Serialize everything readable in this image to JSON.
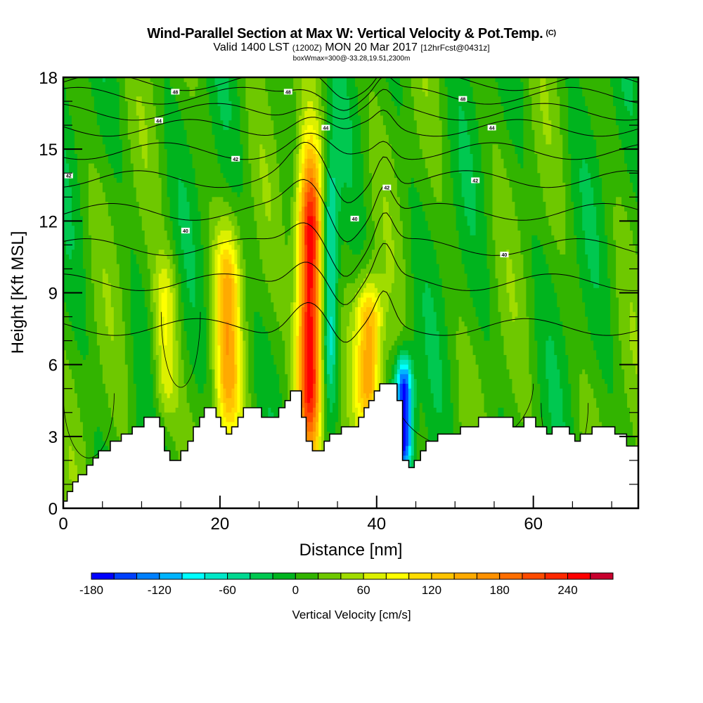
{
  "header": {
    "title": "Wind-Parallel Section at Max W: Vertical Velocity & Pot.Temp.",
    "copyright": "(C)",
    "valid_prefix": "Valid 1400 LST",
    "valid_utc": "(1200Z)",
    "valid_date": "MON 20 Mar 2017",
    "forecast": "[12hrFcst@0431z]",
    "box_info": "boxWmax=300@-33.28,19.51,2300m"
  },
  "chart_data": {
    "type": "heatmap",
    "title": "Wind-Parallel Section at Max W: Vertical Velocity & Pot.Temp.",
    "xlabel": "Distance [nm]",
    "ylabel": "Height [Kft MSL]",
    "xlim": [
      0,
      73.4
    ],
    "ylim": [
      0,
      18
    ],
    "x_ticks": [
      "0",
      "20",
      "40",
      "60"
    ],
    "x_tick_values": [
      0,
      20,
      40,
      60
    ],
    "y_ticks": [
      "0",
      "3",
      "6",
      "9",
      "12",
      "15",
      "18"
    ],
    "y_tick_values": [
      0,
      3,
      6,
      9,
      12,
      15,
      18
    ],
    "colorbar": {
      "label": "Vertical Velocity [cm/s]",
      "tick_labels": [
        "-180",
        "-120",
        "-60",
        "0",
        "60",
        "120",
        "180",
        "240"
      ],
      "tick_values": [
        -180,
        -120,
        -60,
        0,
        60,
        120,
        180,
        240
      ],
      "levels": [
        -180,
        -160,
        -140,
        -120,
        -100,
        -80,
        -60,
        -40,
        -20,
        0,
        20,
        40,
        60,
        80,
        100,
        120,
        140,
        160,
        180,
        200,
        220,
        240,
        260,
        280
      ],
      "colors": [
        "#0000ff",
        "#0040ff",
        "#0080ff",
        "#00b4ff",
        "#00ffff",
        "#00e8c8",
        "#00d890",
        "#00c850",
        "#00b41e",
        "#32b400",
        "#6ec800",
        "#a0dc00",
        "#dcf000",
        "#ffff00",
        "#ffdc00",
        "#ffc300",
        "#ffaa00",
        "#ff9100",
        "#ff6e00",
        "#ff4b00",
        "#ff2800",
        "#ff0000",
        "#c8002d"
      ]
    },
    "updrafts": [
      {
        "name": "main updraft",
        "x_nm": 31.5,
        "z_kft": [
          3,
          14
        ],
        "max_cm_s": 270
      },
      {
        "name": "secondary updraft",
        "x_nm": 21,
        "z_kft": [
          3.5,
          11
        ],
        "max_cm_s": 120
      },
      {
        "name": "updraft near 39 nm",
        "x_nm": 39,
        "z_kft": [
          4,
          9
        ],
        "max_cm_s": 140
      },
      {
        "name": "updraft near 13 nm",
        "x_nm": 13,
        "z_kft": [
          4,
          10
        ],
        "max_cm_s": 70
      }
    ],
    "downdrafts": [
      {
        "name": "downdraft near 43 nm",
        "x_nm": 43.5,
        "z_kft": [
          2,
          6
        ],
        "min_cm_s": -180
      },
      {
        "name": "downdraft near 34 nm",
        "x_nm": 34,
        "z_kft": [
          5,
          14
        ],
        "min_cm_s": -90
      }
    ],
    "terrain_kft": [
      [
        0,
        0.3
      ],
      [
        0.5,
        0.3
      ],
      [
        0.5,
        0.7
      ],
      [
        1.2,
        0.7
      ],
      [
        1.2,
        1.1
      ],
      [
        1.9,
        1.1
      ],
      [
        1.9,
        1.4
      ],
      [
        3,
        1.4
      ],
      [
        3,
        1.8
      ],
      [
        3.8,
        1.8
      ],
      [
        3.8,
        2.1
      ],
      [
        4.5,
        2.1
      ],
      [
        4.5,
        2.4
      ],
      [
        6,
        2.4
      ],
      [
        6,
        2.8
      ],
      [
        7.4,
        2.8
      ],
      [
        7.4,
        3.1
      ],
      [
        8.8,
        3.1
      ],
      [
        8.8,
        3.4
      ],
      [
        10.3,
        3.4
      ],
      [
        10.3,
        3.8
      ],
      [
        12.3,
        3.8
      ],
      [
        12.3,
        3.4
      ],
      [
        12.9,
        3.4
      ],
      [
        12.9,
        2.4
      ],
      [
        13.6,
        2.4
      ],
      [
        13.6,
        2
      ],
      [
        15,
        2
      ],
      [
        15,
        2.4
      ],
      [
        15.9,
        2.4
      ],
      [
        15.9,
        2.8
      ],
      [
        16.6,
        2.8
      ],
      [
        16.6,
        3.4
      ],
      [
        17.4,
        3.4
      ],
      [
        17.4,
        3.8
      ],
      [
        18,
        3.8
      ],
      [
        18,
        4.2
      ],
      [
        19.5,
        4.2
      ],
      [
        19.5,
        3.8
      ],
      [
        20.1,
        3.8
      ],
      [
        20.1,
        3.4
      ],
      [
        20.8,
        3.4
      ],
      [
        20.8,
        3.1
      ],
      [
        21.5,
        3.1
      ],
      [
        21.5,
        3.4
      ],
      [
        22.3,
        3.4
      ],
      [
        22.3,
        3.8
      ],
      [
        23,
        3.8
      ],
      [
        23,
        4.2
      ],
      [
        25.3,
        4.2
      ],
      [
        25.3,
        3.8
      ],
      [
        27.5,
        3.8
      ],
      [
        27.5,
        4.2
      ],
      [
        28.3,
        4.2
      ],
      [
        28.3,
        4.5
      ],
      [
        29,
        4.5
      ],
      [
        29,
        4.9
      ],
      [
        30.4,
        4.9
      ],
      [
        30.4,
        3.8
      ],
      [
        31,
        3.8
      ],
      [
        31,
        2.8
      ],
      [
        31.8,
        2.8
      ],
      [
        31.8,
        2.4
      ],
      [
        33.3,
        2.4
      ],
      [
        33.3,
        2.8
      ],
      [
        34,
        2.8
      ],
      [
        34,
        3.1
      ],
      [
        35.5,
        3.1
      ],
      [
        35.5,
        3.4
      ],
      [
        37.7,
        3.4
      ],
      [
        37.7,
        3.8
      ],
      [
        38.4,
        3.8
      ],
      [
        38.4,
        4.2
      ],
      [
        39,
        4.2
      ],
      [
        39,
        4.5
      ],
      [
        39.7,
        4.5
      ],
      [
        39.7,
        4.9
      ],
      [
        40.4,
        4.9
      ],
      [
        40.4,
        5.2
      ],
      [
        42.6,
        5.2
      ],
      [
        42.6,
        4.5
      ],
      [
        43.3,
        4.5
      ],
      [
        43.3,
        2
      ],
      [
        44.1,
        2
      ],
      [
        44.1,
        1.7
      ],
      [
        44.8,
        1.7
      ],
      [
        44.8,
        2
      ],
      [
        45.6,
        2
      ],
      [
        45.6,
        2.4
      ],
      [
        46.3,
        2.4
      ],
      [
        46.3,
        2.8
      ],
      [
        47.8,
        2.8
      ],
      [
        47.8,
        3.1
      ],
      [
        50.7,
        3.1
      ],
      [
        50.7,
        3.4
      ],
      [
        53,
        3.4
      ],
      [
        53,
        3.8
      ],
      [
        57.4,
        3.8
      ],
      [
        57.4,
        3.4
      ],
      [
        58.8,
        3.4
      ],
      [
        58.8,
        3.8
      ],
      [
        60.3,
        3.8
      ],
      [
        60.3,
        3.4
      ],
      [
        61.7,
        3.4
      ],
      [
        61.7,
        3.1
      ],
      [
        62.4,
        3.1
      ],
      [
        62.4,
        3.4
      ],
      [
        64.6,
        3.4
      ],
      [
        64.6,
        3.1
      ],
      [
        65.3,
        3.1
      ],
      [
        65.3,
        2.8
      ],
      [
        66,
        2.8
      ],
      [
        66,
        3.1
      ],
      [
        67.5,
        3.1
      ],
      [
        67.5,
        3.4
      ],
      [
        70.4,
        3.4
      ],
      [
        70.4,
        3.1
      ],
      [
        71.9,
        3.1
      ],
      [
        71.9,
        2.6
      ],
      [
        73.4,
        2.6
      ]
    ],
    "contour_labels": [
      {
        "text": "48",
        "x_nm": 14.3,
        "z_kft": 17.4
      },
      {
        "text": "48",
        "x_nm": 28.7,
        "z_kft": 17.4
      },
      {
        "text": "48",
        "x_nm": 51,
        "z_kft": 17.1
      },
      {
        "text": "44",
        "x_nm": 12.2,
        "z_kft": 16.2
      },
      {
        "text": "44",
        "x_nm": 33.5,
        "z_kft": 15.9
      },
      {
        "text": "44",
        "x_nm": 54.7,
        "z_kft": 15.9
      },
      {
        "text": "42",
        "x_nm": 0.7,
        "z_kft": 13.9
      },
      {
        "text": "42",
        "x_nm": 22,
        "z_kft": 14.6
      },
      {
        "text": "42",
        "x_nm": 41.3,
        "z_kft": 13.4
      },
      {
        "text": "42",
        "x_nm": 52.6,
        "z_kft": 13.7
      },
      {
        "text": "40",
        "x_nm": 15.6,
        "z_kft": 11.6
      },
      {
        "text": "40",
        "x_nm": 37.2,
        "z_kft": 12.1
      },
      {
        "text": "40",
        "x_nm": 56.3,
        "z_kft": 10.6
      }
    ]
  }
}
